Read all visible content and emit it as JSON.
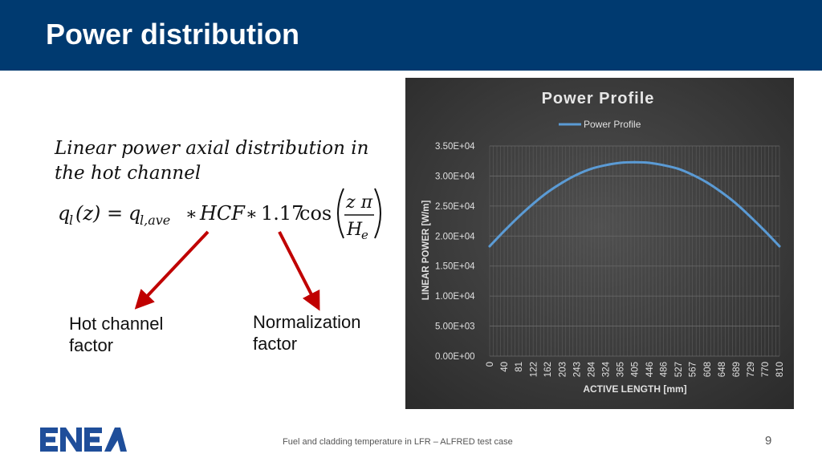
{
  "slide": {
    "title": "Power distribution",
    "description": "Linear power axial distribution in the hot channel",
    "formula": {
      "q": "q",
      "q_sub": "l",
      "z_arg": "(z)",
      "equals": "=",
      "qave_sub": "l,ave",
      "mult1": "∗",
      "hcf": "HCF",
      "mult2": "∗",
      "coef": "1.17",
      "cos": "cos",
      "num": "z π",
      "den": "H",
      "den_sub": "e"
    },
    "annotations": {
      "hot_channel": "Hot channel factor",
      "normalization": "Normalization factor"
    },
    "arrow_color": "#C00000",
    "footer": "Fuel and cladding temperature in LFR – ALFRED test case",
    "page_number": "9",
    "logo_text": "ENEA"
  },
  "colors": {
    "title_bar": "#003A70",
    "chart_background": "#404040",
    "line": "#5B9BD5"
  },
  "chart_data": {
    "type": "line",
    "title": "Power Profile",
    "xlabel": "ACTIVE LENGTH [mm]",
    "ylabel": "LINEAR POWER [W/m]",
    "ylim": [
      0,
      35000
    ],
    "yticks": [
      "0.00E+00",
      "5.00E+03",
      "1.00E+04",
      "1.50E+04",
      "2.00E+04",
      "2.50E+04",
      "3.00E+04",
      "3.50E+04"
    ],
    "xticks": [
      "0",
      "40",
      "81",
      "122",
      "162",
      "203",
      "243",
      "284",
      "324",
      "365",
      "405",
      "446",
      "486",
      "527",
      "567",
      "608",
      "648",
      "689",
      "729",
      "770",
      "810"
    ],
    "xlim": [
      0,
      810
    ],
    "legend": "top-center",
    "grid": true,
    "series": [
      {
        "name": "Power Profile",
        "x": [
          0,
          40,
          81,
          122,
          162,
          203,
          243,
          284,
          324,
          365,
          405,
          446,
          486,
          527,
          567,
          608,
          648,
          689,
          729,
          770,
          810
        ],
        "values": [
          18300,
          20800,
          23200,
          25400,
          27300,
          28900,
          30200,
          31200,
          31800,
          32200,
          32300,
          32200,
          31800,
          31200,
          30200,
          28900,
          27300,
          25400,
          23200,
          20800,
          18300
        ]
      }
    ]
  }
}
